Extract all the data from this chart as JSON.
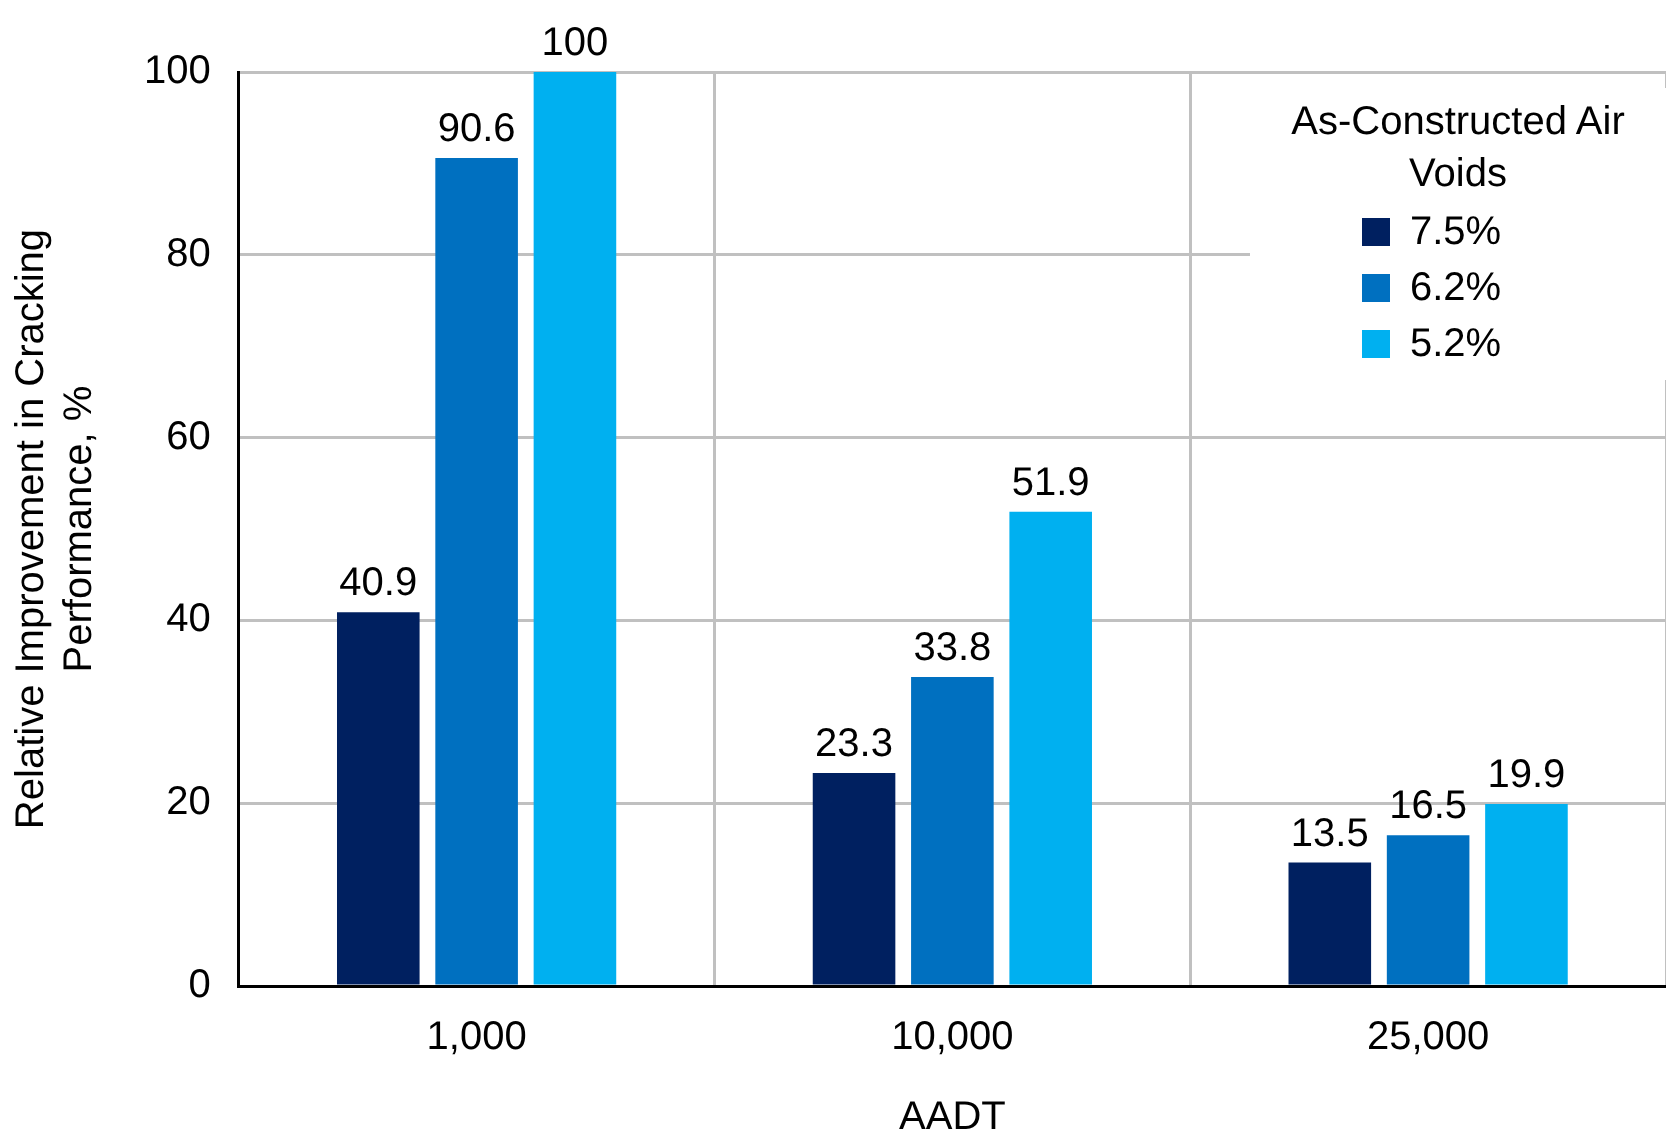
{
  "chart_data": {
    "type": "bar",
    "xlabel": "AADT",
    "ylabel": "Relative Improvement in Cracking Performance, %",
    "legend_title": "As-Constructed Air Voids",
    "categories": [
      "1,000",
      "10,000",
      "25,000"
    ],
    "series": [
      {
        "name": "7.5%",
        "color": "#002060",
        "values": [
          40.9,
          23.3,
          13.5
        ]
      },
      {
        "name": "6.2%",
        "color": "#0070c0",
        "values": [
          90.6,
          33.8,
          16.5
        ]
      },
      {
        "name": "5.2%",
        "color": "#00b0f0",
        "values": [
          100,
          51.9,
          19.9
        ]
      }
    ],
    "ylim": [
      0,
      100
    ],
    "yticks": [
      0,
      20,
      40,
      60,
      80,
      100
    ],
    "grid": true,
    "legend": "top right",
    "data_labels": true
  }
}
